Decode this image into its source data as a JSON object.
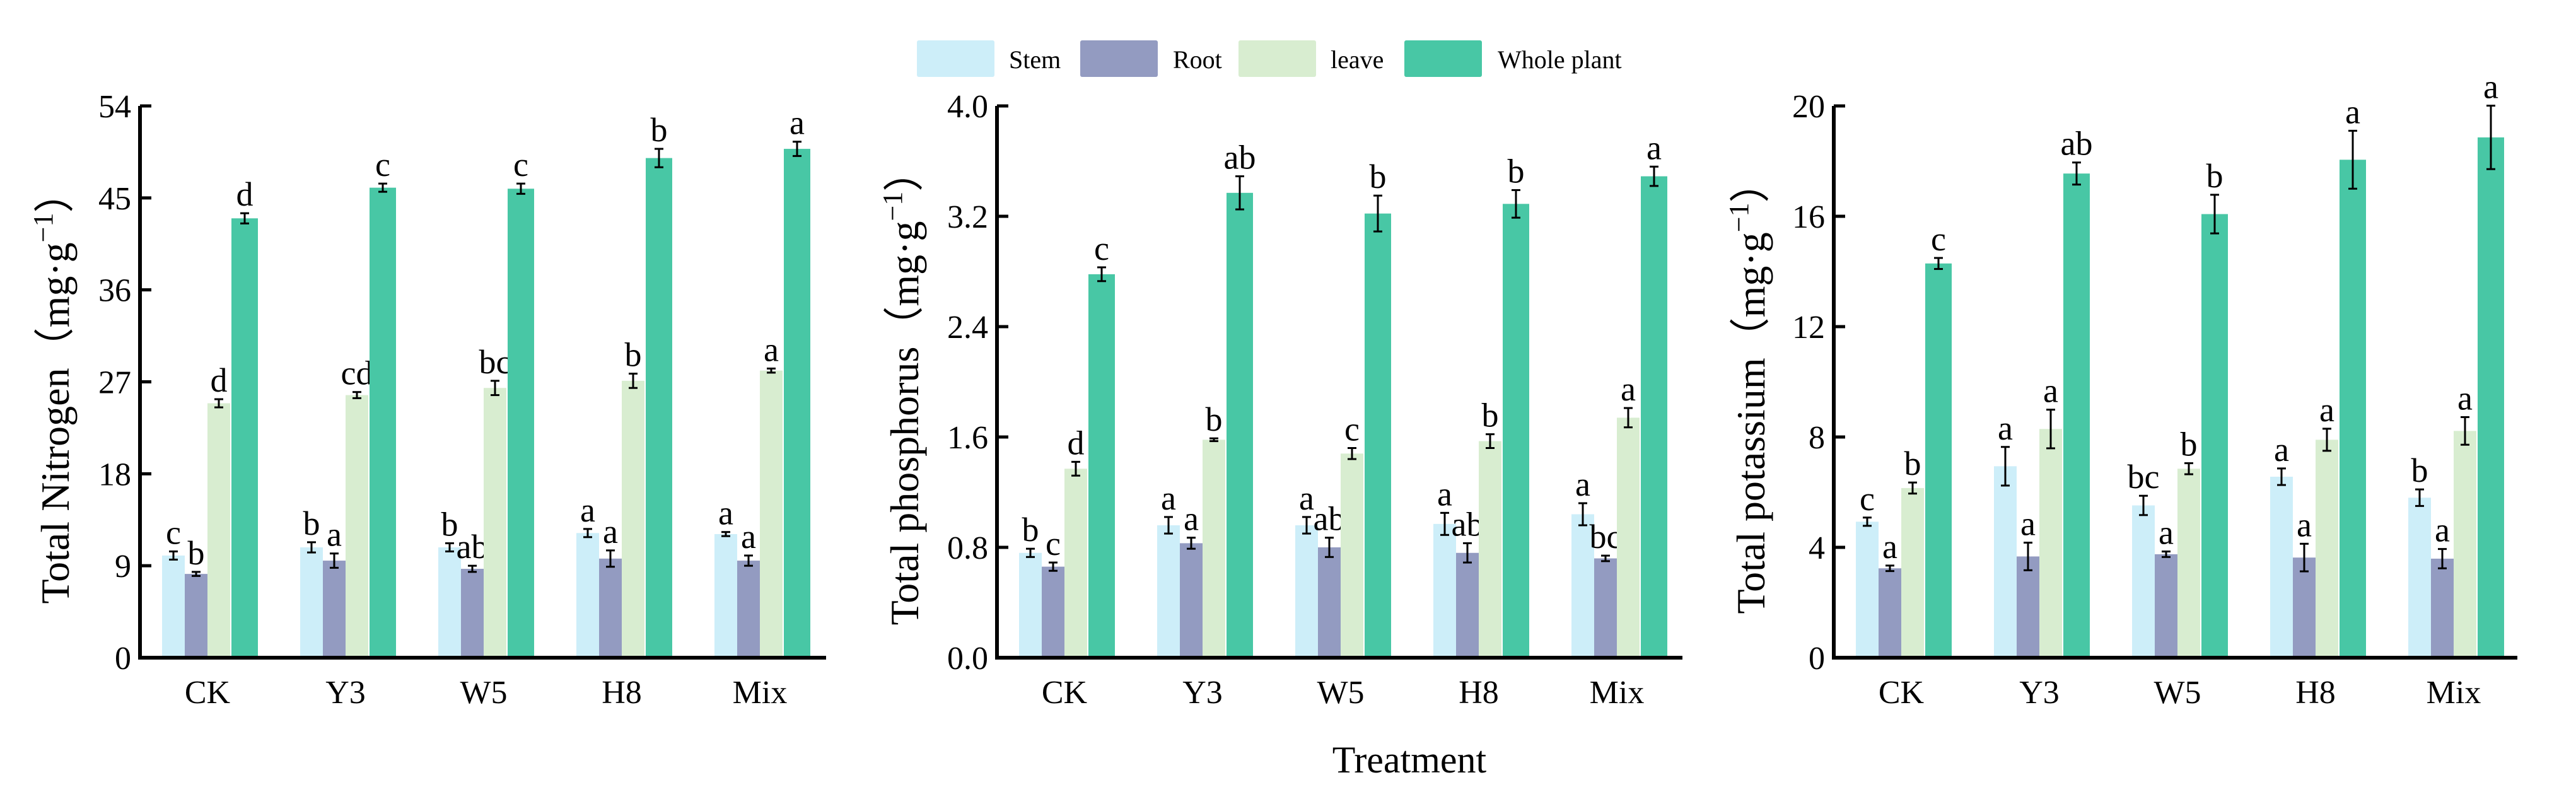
{
  "legend": [
    {
      "name": "Stem",
      "color": "#cdeef9"
    },
    {
      "name": "Root",
      "color": "#939bc1"
    },
    {
      "name": "leave",
      "color": "#d8edd0"
    },
    {
      "name": "Whole plant",
      "color": "#48c7a5"
    }
  ],
  "xlabel": "Treatment",
  "chart_data": [
    {
      "type": "bar",
      "ylabel": "Total Nitrogen（mg·g",
      "ylabel_sup": "−1",
      "ylabel_end": "）",
      "ylim": [
        0,
        54
      ],
      "yticks": [
        "0",
        "9",
        "18",
        "27",
        "36",
        "45",
        "54"
      ],
      "categories": [
        "CK",
        "Y3",
        "W5",
        "H8",
        "Mix"
      ],
      "series": [
        {
          "name": "Stem",
          "values": [
            10.0,
            10.8,
            10.8,
            12.2,
            12.1
          ],
          "errors": [
            0.4,
            0.5,
            0.4,
            0.4,
            0.2
          ],
          "letters": [
            "c",
            "b",
            "b",
            "a",
            "a"
          ]
        },
        {
          "name": "Root",
          "values": [
            8.2,
            9.5,
            8.7,
            9.7,
            9.5
          ],
          "errors": [
            0.2,
            0.7,
            0.3,
            0.8,
            0.5
          ],
          "letters": [
            "b",
            "a",
            "ab",
            "a",
            "a"
          ]
        },
        {
          "name": "leave",
          "values": [
            24.9,
            25.7,
            26.4,
            27.1,
            28.1
          ],
          "errors": [
            0.4,
            0.3,
            0.7,
            0.7,
            0.2
          ],
          "letters": [
            "d",
            "cd",
            "bc",
            "b",
            "a"
          ]
        },
        {
          "name": "Whole plant",
          "values": [
            43.0,
            46.0,
            45.9,
            48.9,
            49.8
          ],
          "errors": [
            0.5,
            0.4,
            0.5,
            0.9,
            0.7
          ],
          "letters": [
            "d",
            "c",
            "c",
            "b",
            "a"
          ]
        }
      ]
    },
    {
      "type": "bar",
      "ylabel": "Total phosphorus（mg·g",
      "ylabel_sup": "−1",
      "ylabel_end": "）",
      "ylim": [
        0,
        4.0
      ],
      "yticks": [
        "0.0",
        "0.8",
        "1.6",
        "2.4",
        "3.2",
        "4.0"
      ],
      "categories": [
        "CK",
        "Y3",
        "W5",
        "H8",
        "Mix"
      ],
      "series": [
        {
          "name": "Stem",
          "values": [
            0.76,
            0.96,
            0.96,
            0.97,
            1.04
          ],
          "errors": [
            0.03,
            0.06,
            0.06,
            0.08,
            0.08
          ],
          "letters": [
            "b",
            "a",
            "a",
            "a",
            "a"
          ]
        },
        {
          "name": "Root",
          "values": [
            0.66,
            0.83,
            0.8,
            0.76,
            0.72
          ],
          "errors": [
            0.03,
            0.04,
            0.07,
            0.07,
            0.02
          ],
          "letters": [
            "c",
            "a",
            "ab",
            "ab",
            "bc"
          ]
        },
        {
          "name": "leave",
          "values": [
            1.37,
            1.58,
            1.48,
            1.57,
            1.74
          ],
          "errors": [
            0.05,
            0.01,
            0.04,
            0.05,
            0.07
          ],
          "letters": [
            "d",
            "b",
            "c",
            "b",
            "a"
          ]
        },
        {
          "name": "Whole plant",
          "values": [
            2.78,
            3.37,
            3.22,
            3.29,
            3.49
          ],
          "errors": [
            0.05,
            0.12,
            0.13,
            0.1,
            0.07
          ],
          "letters": [
            "c",
            "ab",
            "b",
            "b",
            "a"
          ]
        }
      ]
    },
    {
      "type": "bar",
      "ylabel": "Total potassium（mg·g",
      "ylabel_sup": "−1",
      "ylabel_end": "）",
      "ylim": [
        0,
        20
      ],
      "yticks": [
        "0",
        "4",
        "8",
        "12",
        "16",
        "20"
      ],
      "categories": [
        "CK",
        "Y3",
        "W5",
        "H8",
        "Mix"
      ],
      "series": [
        {
          "name": "Stem",
          "values": [
            4.93,
            6.94,
            5.52,
            6.56,
            5.8
          ],
          "errors": [
            0.15,
            0.7,
            0.35,
            0.3,
            0.3
          ],
          "letters": [
            "c",
            "a",
            "bc",
            "a",
            "b"
          ]
        },
        {
          "name": "Root",
          "values": [
            3.24,
            3.67,
            3.75,
            3.63,
            3.59
          ],
          "errors": [
            0.1,
            0.5,
            0.1,
            0.5,
            0.35
          ],
          "letters": [
            "a",
            "a",
            "a",
            "a",
            "a"
          ]
        },
        {
          "name": "leave",
          "values": [
            6.15,
            8.29,
            6.85,
            7.9,
            8.22
          ],
          "errors": [
            0.2,
            0.7,
            0.2,
            0.4,
            0.5
          ],
          "letters": [
            "b",
            "a",
            "b",
            "a",
            "a"
          ]
        },
        {
          "name": "Whole plant",
          "values": [
            14.29,
            17.55,
            16.08,
            18.05,
            18.86
          ],
          "errors": [
            0.2,
            0.4,
            0.7,
            1.05,
            1.15
          ],
          "letters": [
            "c",
            "ab",
            "b",
            "a",
            "a"
          ]
        }
      ]
    }
  ]
}
